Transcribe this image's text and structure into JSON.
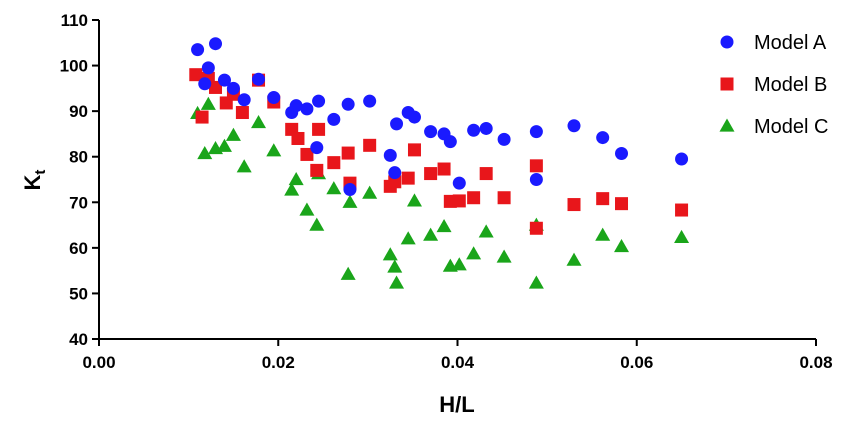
{
  "chart_data": {
    "type": "scatter",
    "xlabel": "H/L",
    "ylabel": "K",
    "ylabel_sub": "t",
    "xlim": [
      0.0,
      0.08
    ],
    "ylim": [
      40,
      110
    ],
    "x_ticks": [
      "0.00",
      "0.02",
      "0.04",
      "0.06",
      "0.08"
    ],
    "y_ticks": [
      "40",
      "50",
      "60",
      "70",
      "80",
      "90",
      "100",
      "110"
    ],
    "grid": false,
    "legend_position": "top-right",
    "series": [
      {
        "name": "Model A",
        "marker": "circle",
        "color": "#1a1aff",
        "points": [
          [
            0.011,
            103.5
          ],
          [
            0.0118,
            96.0
          ],
          [
            0.0122,
            99.5
          ],
          [
            0.013,
            104.8
          ],
          [
            0.014,
            96.8
          ],
          [
            0.015,
            95.0
          ],
          [
            0.0162,
            92.5
          ],
          [
            0.0178,
            97.0
          ],
          [
            0.0195,
            93.0
          ],
          [
            0.0215,
            89.7
          ],
          [
            0.022,
            91.2
          ],
          [
            0.0232,
            90.5
          ],
          [
            0.0243,
            82.0
          ],
          [
            0.0245,
            92.2
          ],
          [
            0.0262,
            88.2
          ],
          [
            0.0278,
            91.5
          ],
          [
            0.028,
            72.8
          ],
          [
            0.0302,
            92.2
          ],
          [
            0.0325,
            80.3
          ],
          [
            0.033,
            76.5
          ],
          [
            0.0332,
            87.2
          ],
          [
            0.0345,
            89.7
          ],
          [
            0.0352,
            88.7
          ],
          [
            0.037,
            85.5
          ],
          [
            0.0385,
            85.0
          ],
          [
            0.0392,
            83.3
          ],
          [
            0.0402,
            74.2
          ],
          [
            0.0418,
            85.8
          ],
          [
            0.0432,
            86.2
          ],
          [
            0.0452,
            83.8
          ],
          [
            0.0488,
            75.0
          ],
          [
            0.0488,
            85.5
          ],
          [
            0.053,
            86.8
          ],
          [
            0.0562,
            84.2
          ],
          [
            0.0583,
            80.7
          ],
          [
            0.065,
            79.5
          ]
        ]
      },
      {
        "name": "Model B",
        "marker": "square",
        "color": "#e8161b",
        "points": [
          [
            0.0108,
            98.0
          ],
          [
            0.0115,
            88.7
          ],
          [
            0.0122,
            97.2
          ],
          [
            0.013,
            95.2
          ],
          [
            0.0142,
            91.8
          ],
          [
            0.015,
            93.7
          ],
          [
            0.016,
            89.7
          ],
          [
            0.0178,
            96.8
          ],
          [
            0.0195,
            92.0
          ],
          [
            0.0215,
            86.0
          ],
          [
            0.0222,
            84.0
          ],
          [
            0.0232,
            80.5
          ],
          [
            0.0243,
            77.0
          ],
          [
            0.0245,
            86.0
          ],
          [
            0.0262,
            78.7
          ],
          [
            0.0278,
            80.8
          ],
          [
            0.028,
            74.2
          ],
          [
            0.0302,
            82.5
          ],
          [
            0.0325,
            73.5
          ],
          [
            0.033,
            74.5
          ],
          [
            0.0345,
            75.3
          ],
          [
            0.0352,
            81.5
          ],
          [
            0.037,
            76.3
          ],
          [
            0.0385,
            77.3
          ],
          [
            0.0392,
            70.2
          ],
          [
            0.0402,
            70.3
          ],
          [
            0.0418,
            71.0
          ],
          [
            0.0432,
            76.3
          ],
          [
            0.0452,
            71.0
          ],
          [
            0.0488,
            64.3
          ],
          [
            0.0488,
            78.0
          ],
          [
            0.053,
            69.5
          ],
          [
            0.0562,
            70.8
          ],
          [
            0.0583,
            69.7
          ],
          [
            0.065,
            68.3
          ]
        ]
      },
      {
        "name": "Model C",
        "marker": "triangle",
        "color": "#1aa51a",
        "points": [
          [
            0.011,
            89.5
          ],
          [
            0.0118,
            80.7
          ],
          [
            0.0122,
            91.5
          ],
          [
            0.013,
            81.8
          ],
          [
            0.014,
            82.3
          ],
          [
            0.015,
            84.7
          ],
          [
            0.0162,
            77.8
          ],
          [
            0.0178,
            87.5
          ],
          [
            0.0195,
            81.3
          ],
          [
            0.0215,
            72.7
          ],
          [
            0.022,
            75.0
          ],
          [
            0.0232,
            68.3
          ],
          [
            0.0243,
            65.0
          ],
          [
            0.0245,
            76.3
          ],
          [
            0.0262,
            73.0
          ],
          [
            0.0278,
            54.2
          ],
          [
            0.028,
            70.0
          ],
          [
            0.0302,
            72.0
          ],
          [
            0.0325,
            58.5
          ],
          [
            0.033,
            55.8
          ],
          [
            0.0332,
            52.3
          ],
          [
            0.0345,
            62.0
          ],
          [
            0.0352,
            70.3
          ],
          [
            0.037,
            62.8
          ],
          [
            0.0385,
            64.7
          ],
          [
            0.0392,
            56.0
          ],
          [
            0.0402,
            56.3
          ],
          [
            0.0418,
            58.7
          ],
          [
            0.0432,
            63.5
          ],
          [
            0.0452,
            58.0
          ],
          [
            0.0488,
            52.3
          ],
          [
            0.0488,
            65.0
          ],
          [
            0.053,
            57.3
          ],
          [
            0.0562,
            62.8
          ],
          [
            0.0583,
            60.3
          ],
          [
            0.065,
            62.3
          ]
        ]
      }
    ]
  }
}
